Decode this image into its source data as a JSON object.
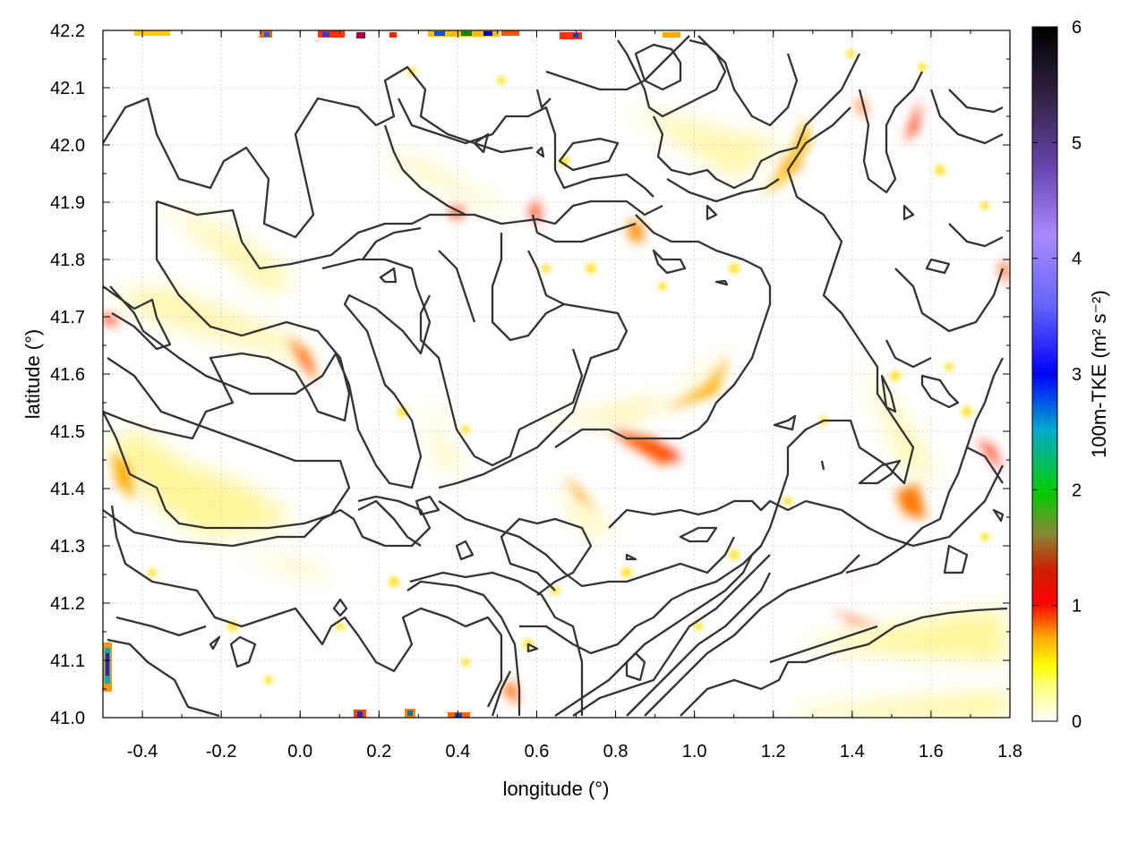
{
  "chart_data": {
    "type": "heatmap",
    "xlabel": "longitude (°)",
    "ylabel": "latitude (°)",
    "colorbar_label": "100m-TKE (m² s⁻²)",
    "xlim": [
      -0.5,
      1.8
    ],
    "ylim": [
      41.0,
      42.2
    ],
    "x_ticks": [
      "-0.4",
      "-0.2",
      "0.0",
      "0.2",
      "0.4",
      "0.6",
      "0.8",
      "1.0",
      "1.2",
      "1.4",
      "1.6",
      "1.8"
    ],
    "x_tick_values": [
      -0.4,
      -0.2,
      0.0,
      0.2,
      0.4,
      0.6,
      0.8,
      1.0,
      1.2,
      1.4,
      1.6,
      1.8
    ],
    "y_ticks": [
      "41.0",
      "41.1",
      "41.2",
      "41.3",
      "41.4",
      "41.5",
      "41.6",
      "41.7",
      "41.8",
      "41.9",
      "42.0",
      "42.1",
      "42.2"
    ],
    "y_tick_values": [
      41.0,
      41.1,
      41.2,
      41.3,
      41.4,
      41.5,
      41.6,
      41.7,
      41.8,
      41.9,
      42.0,
      42.1,
      42.2
    ],
    "colorbar": {
      "range": [
        0,
        6
      ],
      "ticks": [
        "0",
        "1",
        "2",
        "3",
        "4",
        "5",
        "6"
      ],
      "tick_values": [
        0,
        1,
        2,
        3,
        4,
        5,
        6
      ],
      "colormap": [
        "#ffffff",
        "#ffff00",
        "#ff9900",
        "#ff0000",
        "#ff0000",
        "#00aa00",
        "#0000ff",
        "#aa88ff",
        "#443366",
        "#000000"
      ]
    },
    "grid": true,
    "hotspots": [
      {
        "lon": 0.02,
        "lat": 41.63,
        "tke": 1.1
      },
      {
        "lon": 0.9,
        "lat": 41.45,
        "tke": 1.1
      },
      {
        "lon": 0.82,
        "lat": 41.48,
        "tke": 0.8
      },
      {
        "lon": 1.24,
        "lat": 41.96,
        "tke": 0.9
      },
      {
        "lon": 1.55,
        "lat": 42.04,
        "tke": 1.0
      },
      {
        "lon": 0.58,
        "lat": 41.88,
        "tke": 0.8
      },
      {
        "lon": 1.75,
        "lat": 41.47,
        "tke": 0.9
      },
      {
        "lon": 1.41,
        "lat": 41.18,
        "tke": 0.8
      },
      {
        "lon": 1.55,
        "lat": 41.37,
        "tke": 0.7
      },
      {
        "lon": -0.48,
        "lat": 41.42,
        "tke": 0.5
      },
      {
        "lon": -0.5,
        "lat": 41.7,
        "tke": 1.0
      },
      {
        "lon": 0.7,
        "lat": 41.36,
        "tke": 0.6
      },
      {
        "lon": 1.75,
        "lat": 41.79,
        "tke": 0.8
      },
      {
        "lon": 0.35,
        "lat": 41.88,
        "tke": 0.9
      },
      {
        "lon": -0.49,
        "lat": 41.08,
        "tke": 3.0
      },
      {
        "lon": 0.08,
        "lat": 42.19,
        "tke": 2.5
      },
      {
        "lon": 0.4,
        "lat": 42.19,
        "tke": 2.0
      },
      {
        "lon": 0.27,
        "lat": 41.01,
        "tke": 2.0
      },
      {
        "lon": 0.13,
        "lat": 41.01,
        "tke": 2.0
      }
    ]
  }
}
